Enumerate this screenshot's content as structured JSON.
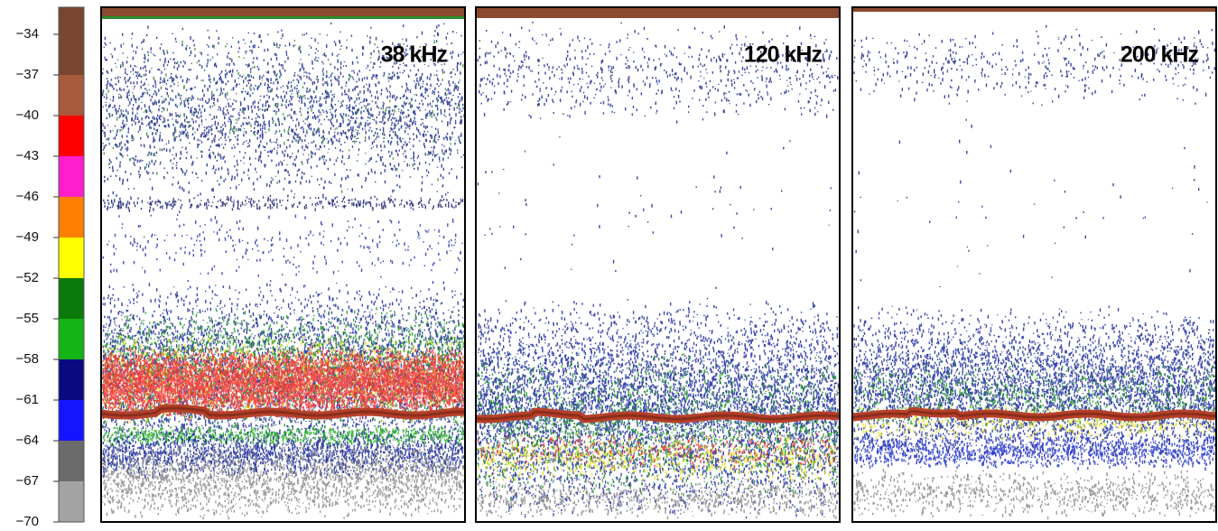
{
  "colorbar": {
    "lim": [
      -70,
      -32
    ],
    "ticks": [
      {
        "value": -34,
        "label": "−34"
      },
      {
        "value": -37,
        "label": "−37"
      },
      {
        "value": -40,
        "label": "−40"
      },
      {
        "value": -43,
        "label": "−43"
      },
      {
        "value": -46,
        "label": "−46"
      },
      {
        "value": -49,
        "label": "−49"
      },
      {
        "value": -52,
        "label": "−52"
      },
      {
        "value": -55,
        "label": "−55"
      },
      {
        "value": -58,
        "label": "−58"
      },
      {
        "value": -61,
        "label": "−61"
      },
      {
        "value": -64,
        "label": "−64"
      },
      {
        "value": -67,
        "label": "−67"
      },
      {
        "value": -70,
        "label": "−70"
      }
    ],
    "edges": [
      -70,
      -67,
      -64,
      -61,
      -58,
      -55,
      -52,
      -49,
      -46,
      -43,
      -40,
      -37,
      -32
    ],
    "colors": [
      "#a3a3a3",
      "#6b6b6b",
      "#1414ff",
      "#0a0a80",
      "#14b414",
      "#0a780a",
      "#ffff00",
      "#ff8000",
      "#ff1ecc",
      "#ff0000",
      "#a85a3c",
      "#7a4530"
    ]
  },
  "panels": [
    {
      "label": "38 kHz"
    },
    {
      "label": "120 kHz"
    },
    {
      "label": "200 kHz"
    }
  ]
}
